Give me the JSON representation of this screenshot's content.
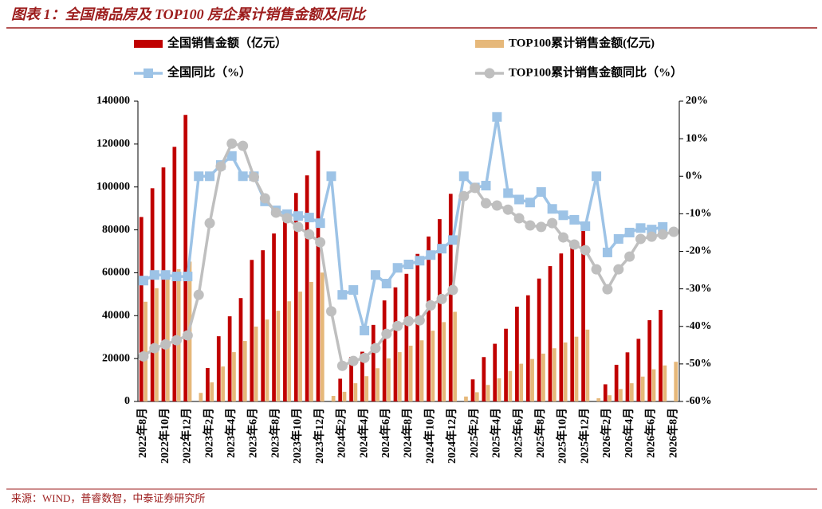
{
  "chart_data": {
    "type": "bar",
    "title": "图表 1：全国商品房及 TOP100 房企累计销售金额及同比",
    "source": "来源：WIND，普睿数智，中泰证券研究所",
    "categories": [
      "2022年8月",
      null,
      "2022年10月",
      null,
      "2022年12月",
      null,
      "2023年2月",
      null,
      "2023年4月",
      null,
      "2023年6月",
      null,
      "2023年8月",
      null,
      "2023年10月",
      null,
      "2023年12月",
      null,
      "2024年2月",
      null,
      "2024年4月",
      null,
      "2024年6月",
      null,
      "2024年8月",
      null,
      "2024年10月",
      null,
      "2024年12月",
      null,
      "2025年2月",
      null,
      "2025年4月",
      null,
      "2025年6月",
      null,
      "2025年8月",
      null,
      "2025年10月",
      null,
      "2025年12月",
      null,
      "2026年2月",
      null,
      "2026年4月",
      null,
      "2026年6月",
      null,
      "2026年8月"
    ],
    "series": [
      {
        "name": "全国销售金额（亿元）",
        "type": "bar",
        "color": "#c00000",
        "values": [
          86000,
          99400,
          109100,
          118700,
          133600,
          null,
          15600,
          30400,
          39700,
          48200,
          66000,
          70500,
          78300,
          87200,
          97200,
          105400,
          116900,
          null,
          10600,
          20800,
          23200,
          35700,
          47100,
          53200,
          59500,
          68800,
          76900,
          85000,
          96800,
          null,
          10300,
          20700,
          26900,
          33900,
          44200,
          49500,
          57300,
          63100,
          69000,
          75000,
          79500,
          null,
          8000,
          17100,
          22900,
          29200,
          37900,
          42700,
          null
        ]
      },
      {
        "name": "TOP100累计销售金额(亿元)",
        "type": "bar",
        "color": "#e6b87a",
        "values": [
          46500,
          52800,
          57500,
          61700,
          65200,
          4000,
          8900,
          16300,
          23000,
          28200,
          34900,
          38200,
          42300,
          46700,
          51200,
          55700,
          60100,
          2600,
          4500,
          8500,
          11800,
          15500,
          20100,
          23000,
          26000,
          28500,
          33000,
          37000,
          41800,
          2300,
          4300,
          7700,
          10800,
          14200,
          17600,
          19800,
          22300,
          24800,
          27500,
          30200,
          33500,
          1500,
          2900,
          5800,
          8500,
          11600,
          15000,
          16800,
          18500
        ]
      },
      {
        "name": "全国同比（%）",
        "type": "line",
        "axis": "y2",
        "color": "#9dc3e6",
        "marker": "square",
        "values": [
          -27.8,
          -26.3,
          -26.3,
          -26.7,
          -26.7,
          0,
          0,
          3,
          5.4,
          0,
          0,
          -6.7,
          -9.1,
          -10.1,
          -10.6,
          -11,
          -12.5,
          0,
          -31.6,
          -30.3,
          -41.1,
          -26.3,
          -28.6,
          -24.4,
          -23.5,
          -22.5,
          -21,
          -19.3,
          -17,
          0,
          -3,
          -2.5,
          15.8,
          -4.5,
          -6.2,
          -7,
          -4.2,
          -8.7,
          -10.4,
          -11.6,
          -13.3,
          0,
          -20.3,
          -16.7,
          -15,
          -13.8,
          -14.2,
          -13.5,
          null
        ]
      },
      {
        "name": "TOP100累计销售金额同比（%）",
        "type": "line",
        "axis": "y2",
        "color": "#bfbfbf",
        "marker": "circle",
        "values": [
          -48,
          -45.8,
          -44.8,
          -43.7,
          -42.4,
          -31.6,
          -12.5,
          2.6,
          8.7,
          8.1,
          -0.2,
          -5.9,
          -9.7,
          -11.2,
          -13.5,
          -15.5,
          -17.6,
          -36,
          -50.5,
          -49.2,
          -48.4,
          -45.8,
          -42,
          -39.9,
          -38.6,
          -38.4,
          -34.4,
          -32.7,
          -30.3,
          -5.3,
          -3.1,
          -7.2,
          -7.8,
          -8.9,
          -11.2,
          -13.1,
          -13.5,
          -12.5,
          -16.3,
          -18.2,
          -19.7,
          -24.8,
          -30.1,
          -24.8,
          -21.4,
          -16.7,
          -16.1,
          -15.5,
          -14.8
        ]
      }
    ],
    "ylim": [
      0,
      140000
    ],
    "yticks": [
      0,
      20000,
      40000,
      60000,
      80000,
      100000,
      120000,
      140000
    ],
    "y2lim": [
      -60,
      20
    ],
    "y2ticks": [
      {
        "value": -60,
        "label": "-60%"
      },
      {
        "value": -50,
        "label": "-50%"
      },
      {
        "value": -40,
        "label": "-40%"
      },
      {
        "value": -30,
        "label": "-30%"
      },
      {
        "value": -20,
        "label": "-20%"
      },
      {
        "value": -10,
        "label": "-10%"
      },
      {
        "value": 0,
        "label": "0%"
      },
      {
        "value": 10,
        "label": "10%"
      },
      {
        "value": 20,
        "label": "20%"
      }
    ],
    "grid": false,
    "legend": "top"
  }
}
